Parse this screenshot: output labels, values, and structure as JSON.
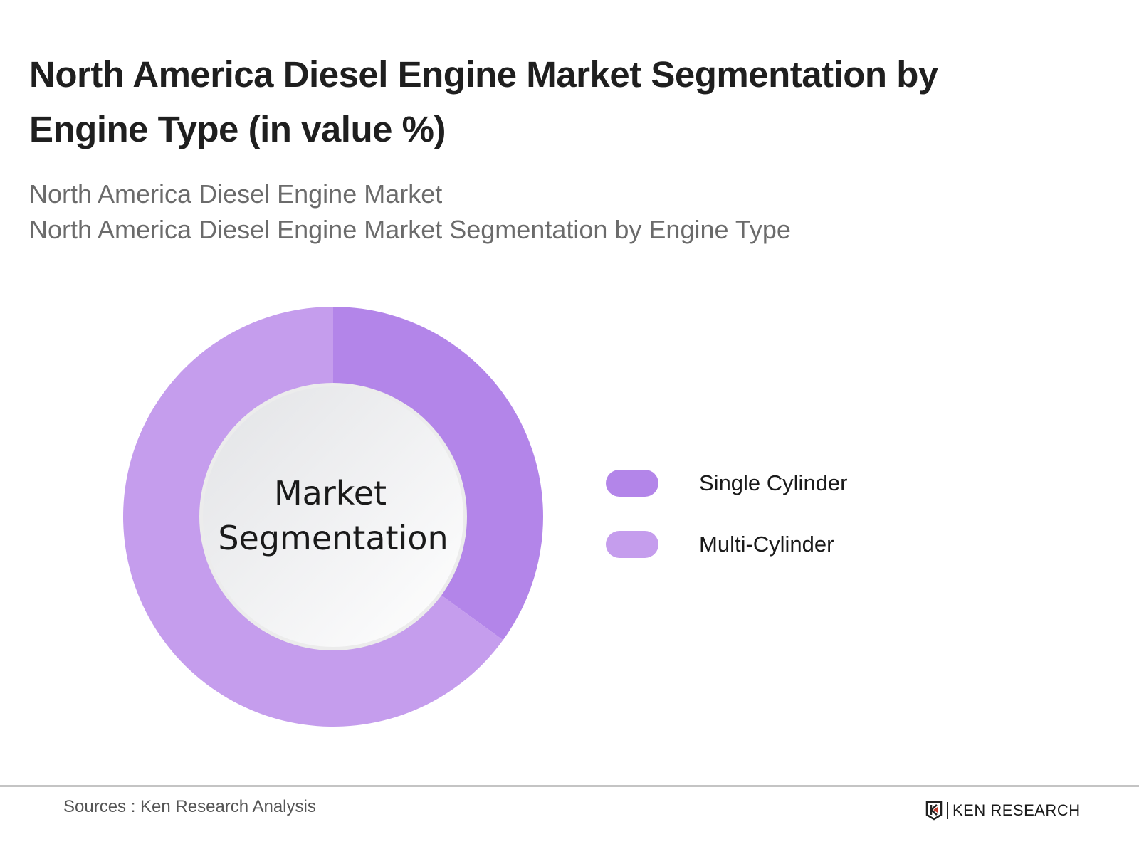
{
  "title": "North America Diesel Engine Market Segmentation by Engine Type (in value %)",
  "subtitles": [
    "North America Diesel Engine Market",
    "North America Diesel Engine Market Segmentation by Engine Type"
  ],
  "footer": {
    "sources": "Sources : Ken Research Analysis",
    "logo_text": "KEN RESEARCH"
  },
  "chart_data": {
    "type": "pie",
    "variant": "donut",
    "center_label": [
      "Market",
      "Segmentation"
    ],
    "categories": [
      "Single Cylinder",
      "Multi-Cylinder"
    ],
    "values": [
      35,
      65
    ],
    "unit": "%",
    "colors": [
      "#b385e9",
      "#c59ded"
    ],
    "legend_position": "right",
    "data_labels": false
  }
}
